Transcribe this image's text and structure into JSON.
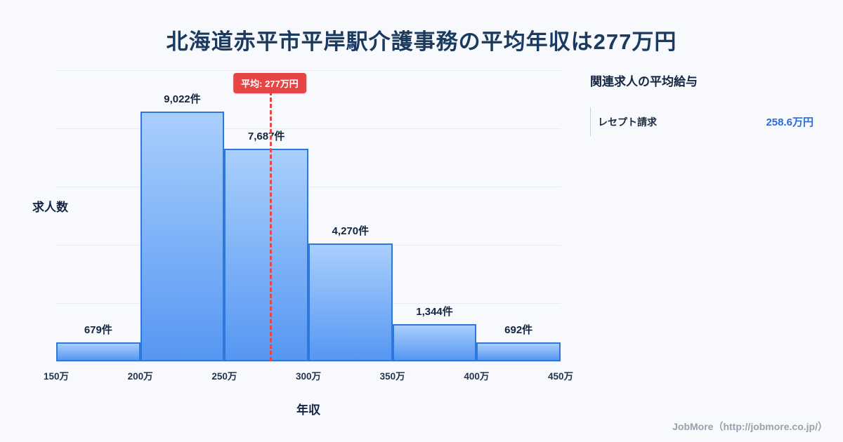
{
  "page": {
    "title": "北海道赤平市平岸駅介護事務の平均年収は277万円",
    "footer": "JobMore（http://jobmore.co.jp/）"
  },
  "chart_data": {
    "type": "bar",
    "title": "北海道赤平市平岸駅介護事務の平均年収は277万円",
    "xlabel": "年収",
    "ylabel": "求人数",
    "x_ticks": [
      "150万",
      "200万",
      "250万",
      "300万",
      "350万",
      "400万",
      "450万"
    ],
    "x_min": 150,
    "x_max": 450,
    "bars": [
      {
        "range_start": "150万",
        "range_end": "200万",
        "count": 679,
        "label": "679件"
      },
      {
        "range_start": "200万",
        "range_end": "250万",
        "count": 9022,
        "label": "9,022件"
      },
      {
        "range_start": "250万",
        "range_end": "300万",
        "count": 7687,
        "label": "7,687件"
      },
      {
        "range_start": "300万",
        "range_end": "350万",
        "count": 4270,
        "label": "4,270件"
      },
      {
        "range_start": "350万",
        "range_end": "400万",
        "count": 1344,
        "label": "1,344件"
      },
      {
        "range_start": "400万",
        "range_end": "450万",
        "count": 692,
        "label": "692件"
      }
    ],
    "average_line": {
      "value": 277,
      "label": "平均: 277万円"
    },
    "grid": true,
    "legend": false,
    "colors": {
      "bar_gradient_top": "#a9cffc",
      "bar_gradient_bottom": "#5697f3",
      "bar_border": "#2d78da",
      "average_line": "#e64545",
      "title_text": "#1b3a60",
      "value_text": "#2b6be0"
    }
  },
  "side_panel": {
    "heading": "関連求人の平均給与",
    "items": [
      {
        "label": "レセプト請求",
        "value": "258.6万円"
      }
    ]
  }
}
